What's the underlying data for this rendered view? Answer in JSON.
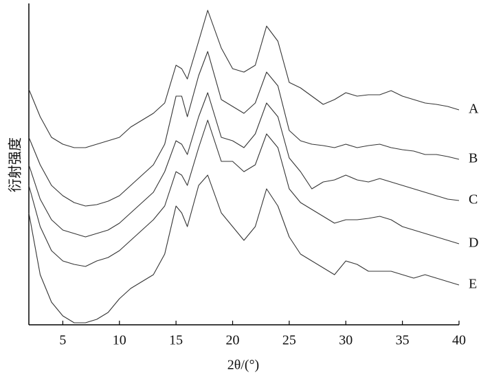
{
  "chart_data": {
    "type": "line",
    "x_label": "2θ/(°)",
    "y_label": "衍射强度",
    "x": [
      2,
      3,
      4,
      5,
      6,
      7,
      8,
      9,
      10,
      11,
      12,
      13,
      14,
      15,
      15.5,
      16,
      17,
      17.8,
      19,
      20,
      21,
      22,
      23,
      24,
      25,
      26,
      27,
      28,
      29,
      30,
      31,
      32,
      33,
      34,
      35,
      36,
      37,
      38,
      39,
      40
    ],
    "series": [
      {
        "name": "A",
        "color": "#333333",
        "values": [
          343,
          303,
          273,
          263,
          258,
          258,
          263,
          268,
          273,
          288,
          298,
          308,
          323,
          378,
          373,
          358,
          413,
          458,
          403,
          373,
          368,
          378,
          435,
          413,
          353,
          345,
          333,
          321,
          328,
          338,
          333,
          335,
          335,
          341,
          333,
          328,
          323,
          321,
          318,
          313
        ]
      },
      {
        "name": "B",
        "color": "#333333",
        "values": [
          273,
          233,
          203,
          188,
          178,
          173,
          175,
          180,
          188,
          203,
          218,
          233,
          263,
          333,
          333,
          303,
          363,
          398,
          328,
          318,
          308,
          323,
          368,
          348,
          283,
          268,
          263,
          261,
          258,
          263,
          258,
          261,
          263,
          258,
          255,
          253,
          248,
          248,
          245,
          241
        ]
      },
      {
        "name": "C",
        "color": "#333333",
        "values": [
          233,
          183,
          153,
          138,
          133,
          128,
          133,
          138,
          148,
          163,
          178,
          193,
          223,
          268,
          263,
          248,
          303,
          338,
          273,
          268,
          258,
          278,
          323,
          303,
          243,
          223,
          198,
          208,
          211,
          218,
          211,
          208,
          213,
          208,
          203,
          198,
          193,
          188,
          183,
          181
        ]
      },
      {
        "name": "D",
        "color": "#333333",
        "values": [
          203,
          143,
          108,
          93,
          88,
          85,
          93,
          98,
          108,
          123,
          138,
          153,
          173,
          223,
          218,
          203,
          258,
          298,
          238,
          238,
          223,
          233,
          278,
          258,
          198,
          178,
          168,
          158,
          148,
          153,
          153,
          155,
          158,
          153,
          143,
          138,
          133,
          128,
          123,
          118
        ]
      },
      {
        "name": "E",
        "color": "#333333",
        "values": [
          163,
          73,
          33,
          13,
          3,
          3,
          8,
          18,
          38,
          53,
          63,
          73,
          103,
          173,
          163,
          143,
          203,
          218,
          163,
          143,
          123,
          143,
          198,
          173,
          128,
          103,
          93,
          83,
          73,
          93,
          88,
          78,
          78,
          78,
          73,
          68,
          73,
          68,
          63,
          58
        ]
      }
    ],
    "xlim": [
      2,
      40
    ],
    "xticks": [
      5,
      10,
      15,
      20,
      25,
      30,
      35,
      40
    ],
    "ylim": [
      0,
      468
    ]
  }
}
